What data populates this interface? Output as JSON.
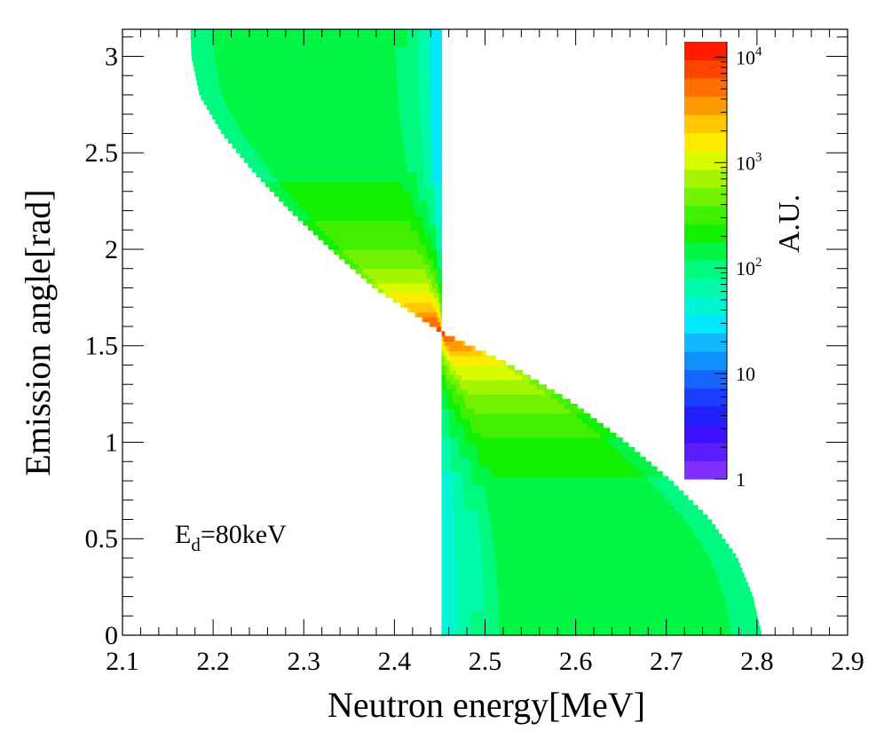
{
  "chart_data": {
    "type": "heatmap",
    "title": "",
    "xlabel": "Neutron energy[MeV]",
    "ylabel": "Emission angle[rad]",
    "zlabel": "A.U.",
    "z_scale": "log",
    "xlim": [
      2.1,
      2.9
    ],
    "ylim": [
      0,
      3.14
    ],
    "zlim": [
      1,
      14000
    ],
    "x_ticks": [
      "2.1",
      "2.2",
      "2.3",
      "2.4",
      "2.5",
      "2.6",
      "2.7",
      "2.8",
      "2.9"
    ],
    "y_ticks": [
      "0",
      "0.5",
      "1",
      "1.5",
      "2",
      "2.5",
      "3"
    ],
    "z_ticks": [
      {
        "base": "1",
        "exp": ""
      },
      {
        "base": "10",
        "exp": ""
      },
      {
        "base": "10",
        "exp": "2"
      },
      {
        "base": "10",
        "exp": "3"
      },
      {
        "base": "10",
        "exp": "4"
      }
    ],
    "annotation": {
      "main": "E",
      "sub": "d",
      "rest": "=80keV"
    },
    "x_center": 2.452,
    "boundary": [
      {
        "angle": 0.0,
        "e_min": 2.452,
        "e_max": 2.805
      },
      {
        "angle": 0.2,
        "e_min": 2.452,
        "e_max": 2.795
      },
      {
        "angle": 0.4,
        "e_min": 2.452,
        "e_max": 2.778
      },
      {
        "angle": 0.6,
        "e_min": 2.452,
        "e_max": 2.748
      },
      {
        "angle": 0.8,
        "e_min": 2.452,
        "e_max": 2.705
      },
      {
        "angle": 1.0,
        "e_min": 2.452,
        "e_max": 2.655
      },
      {
        "angle": 1.2,
        "e_min": 2.452,
        "e_max": 2.598
      },
      {
        "angle": 1.4,
        "e_min": 2.452,
        "e_max": 2.528
      },
      {
        "angle": 1.57,
        "e_min": 2.452,
        "e_max": 2.452
      },
      {
        "angle": 1.8,
        "e_min": 2.378,
        "e_max": 2.452
      },
      {
        "angle": 2.0,
        "e_min": 2.33,
        "e_max": 2.452
      },
      {
        "angle": 2.2,
        "e_min": 2.285,
        "e_max": 2.452
      },
      {
        "angle": 2.4,
        "e_min": 2.245,
        "e_max": 2.452
      },
      {
        "angle": 2.6,
        "e_min": 2.21,
        "e_max": 2.452
      },
      {
        "angle": 2.8,
        "e_min": 2.185,
        "e_max": 2.452
      },
      {
        "angle": 3.0,
        "e_min": 2.176,
        "e_max": 2.452
      },
      {
        "angle": 3.14,
        "e_min": 2.175,
        "e_max": 2.452
      }
    ],
    "color_levels": [
      "#7f2fff",
      "#5a1fff",
      "#3c0fff",
      "#2020ff",
      "#1a3fff",
      "#1565ff",
      "#1090ff",
      "#12b8ff",
      "#00e8ff",
      "#00f5d5",
      "#00fbab",
      "#00fa80",
      "#00f545",
      "#10f000",
      "#40f000",
      "#70f200",
      "#a5f500",
      "#d8fb00",
      "#ffeb00",
      "#ffc800",
      "#ff9b00",
      "#ff7000",
      "#ff4400",
      "#ff1a00"
    ]
  }
}
